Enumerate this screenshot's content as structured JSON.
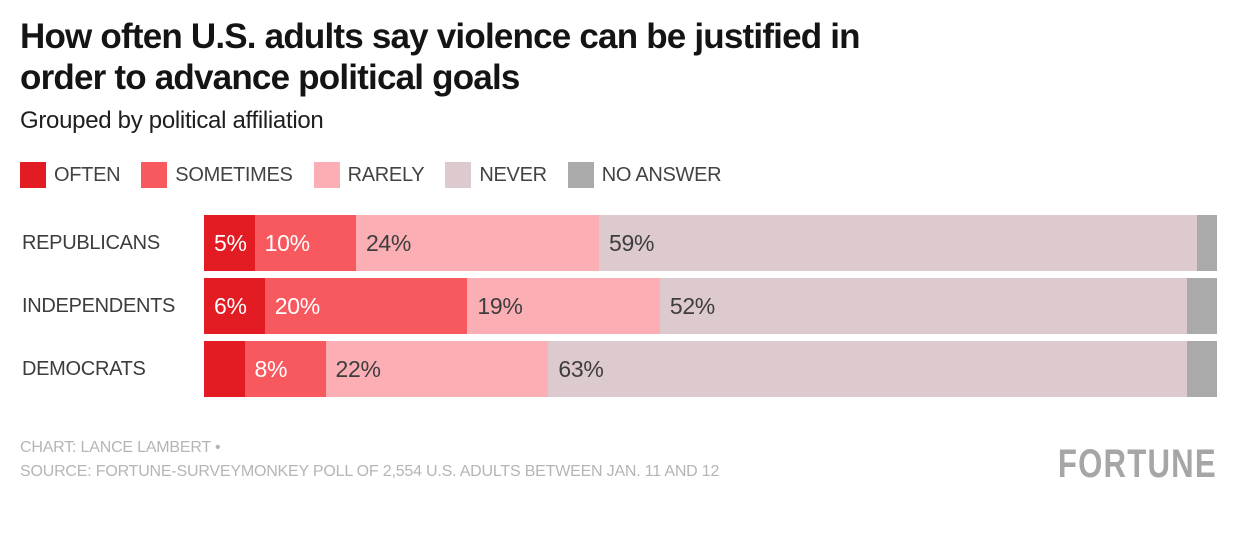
{
  "header": {
    "title_line1": "How often U.S. adults say violence can be justified in",
    "title_line2": "order to advance political goals",
    "subtitle": "Grouped by political affiliation"
  },
  "chart_data": {
    "type": "bar",
    "orientation": "horizontal",
    "stacked": true,
    "title": "How often U.S. adults say violence can be justified in order to advance political goals",
    "subtitle": "Grouped by political affiliation",
    "unit": "%",
    "xlim": [
      0,
      100
    ],
    "legend_position": "top",
    "grid": false,
    "categories": [
      "REPUBLICANS",
      "INDEPENDENTS",
      "DEMOCRATS"
    ],
    "series": [
      {
        "name": "OFTEN",
        "color": "#e31b22",
        "label_color": "#ffffff",
        "values": [
          5,
          6,
          4
        ]
      },
      {
        "name": "SOMETIMES",
        "color": "#f8595f",
        "label_color": "#ffffff",
        "values": [
          10,
          20,
          8
        ]
      },
      {
        "name": "RARELY",
        "color": "#fbafb4",
        "label_color": "#3d3d3d",
        "values": [
          24,
          19,
          22
        ]
      },
      {
        "name": "NEVER",
        "color": "#ddcace",
        "label_color": "#3d3d3d",
        "values": [
          59,
          52,
          63
        ]
      },
      {
        "name": "NO ANSWER",
        "color": "#a9aaa9",
        "label_color": "#3d3d3d",
        "values": [
          2,
          3,
          3
        ]
      }
    ],
    "show_labels": [
      [
        true,
        true,
        true,
        true,
        false
      ],
      [
        true,
        true,
        true,
        true,
        false
      ],
      [
        false,
        true,
        true,
        true,
        false
      ]
    ]
  },
  "footer": {
    "credit": "CHART: LANCE LAMBERT •",
    "source": "SOURCE: FORTUNE-SURVEYMONKEY POLL OF 2,554 U.S. ADULTS BETWEEN JAN. 11 AND 12",
    "brand": "FORTUNE"
  }
}
